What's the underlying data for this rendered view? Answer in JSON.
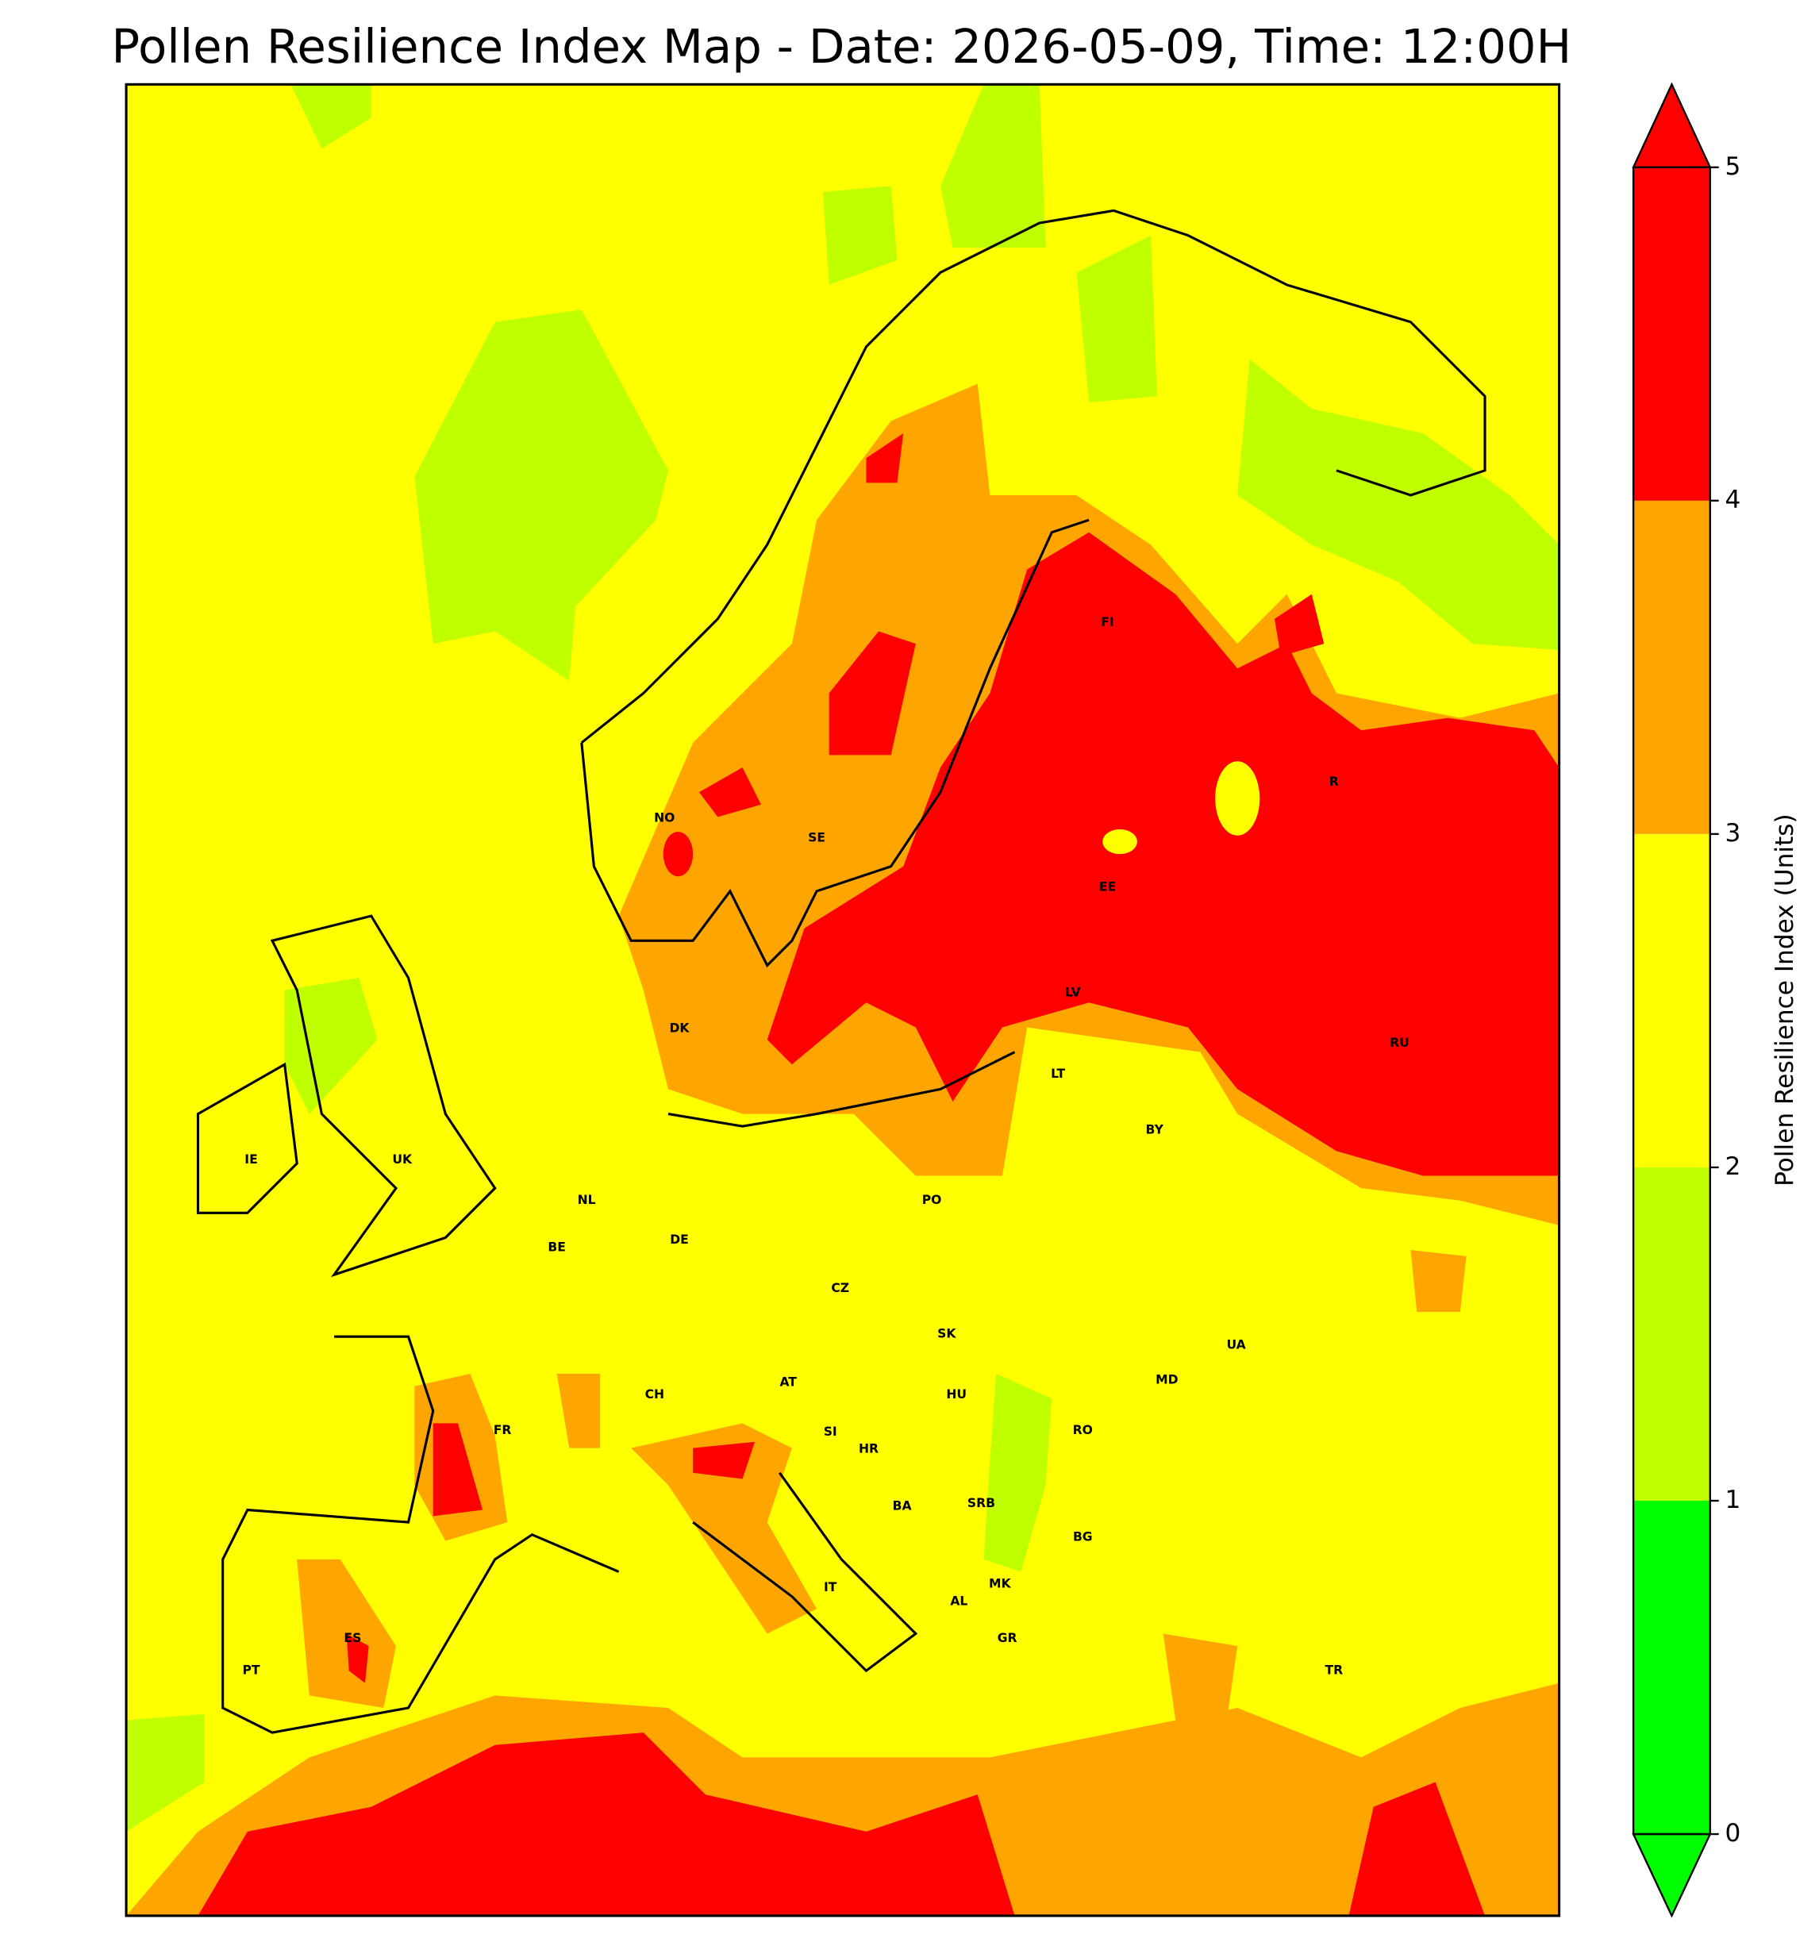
{
  "title": "Pollen Resilience Index Map - Date: 2026-05-09, Time: 12:00H",
  "map": {
    "country_labels": [
      "NO",
      "SE",
      "FI",
      "EE",
      "LV",
      "LT",
      "RU",
      "R",
      "BY",
      "DK",
      "IE",
      "UK",
      "NL",
      "BE",
      "DE",
      "PO",
      "CZ",
      "SK",
      "UA",
      "AT",
      "CH",
      "HU",
      "MD",
      "RO",
      "FR",
      "SI",
      "HR",
      "BA",
      "SRB",
      "BG",
      "MK",
      "IT",
      "AL",
      "ES",
      "GR",
      "PT",
      "TR"
    ]
  },
  "colorbar": {
    "label": "Pollen Resilience Index (Units)",
    "lim": [
      0,
      5
    ],
    "ticks": [
      0,
      1,
      2,
      3,
      4,
      5
    ],
    "colors": [
      "#00ff00",
      "#bfff00",
      "#ffff00",
      "#ffa500",
      "#ff0000"
    ],
    "extend": "both"
  }
}
